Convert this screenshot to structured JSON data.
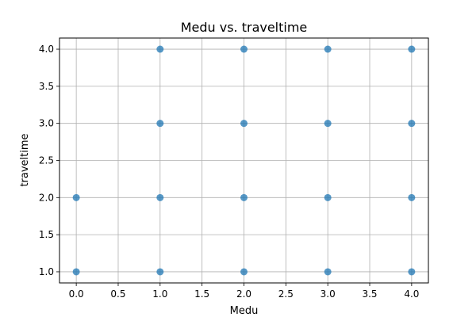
{
  "chart_data": {
    "type": "scatter",
    "title": "Medu vs. traveltime",
    "xlabel": "Medu",
    "ylabel": "traveltime",
    "xlim": [
      -0.2,
      4.2
    ],
    "ylim": [
      0.85,
      4.15
    ],
    "xticks": [
      0.0,
      0.5,
      1.0,
      1.5,
      2.0,
      2.5,
      3.0,
      3.5,
      4.0
    ],
    "xtick_labels": [
      "0.0",
      "0.5",
      "1.0",
      "1.5",
      "2.0",
      "2.5",
      "3.0",
      "3.5",
      "4.0"
    ],
    "yticks": [
      1.0,
      1.5,
      2.0,
      2.5,
      3.0,
      3.5,
      4.0
    ],
    "ytick_labels": [
      "1.0",
      "1.5",
      "2.0",
      "2.5",
      "3.0",
      "3.5",
      "4.0"
    ],
    "grid": true,
    "marker_color": "#1f77b4",
    "series": [
      {
        "points": [
          {
            "x": 0,
            "y": 1
          },
          {
            "x": 0,
            "y": 2
          },
          {
            "x": 1,
            "y": 1
          },
          {
            "x": 1,
            "y": 2
          },
          {
            "x": 1,
            "y": 3
          },
          {
            "x": 1,
            "y": 4
          },
          {
            "x": 2,
            "y": 1
          },
          {
            "x": 2,
            "y": 2
          },
          {
            "x": 2,
            "y": 3
          },
          {
            "x": 2,
            "y": 4
          },
          {
            "x": 3,
            "y": 1
          },
          {
            "x": 3,
            "y": 2
          },
          {
            "x": 3,
            "y": 3
          },
          {
            "x": 3,
            "y": 4
          },
          {
            "x": 4,
            "y": 1
          },
          {
            "x": 4,
            "y": 2
          },
          {
            "x": 4,
            "y": 3
          },
          {
            "x": 4,
            "y": 4
          }
        ]
      }
    ]
  }
}
